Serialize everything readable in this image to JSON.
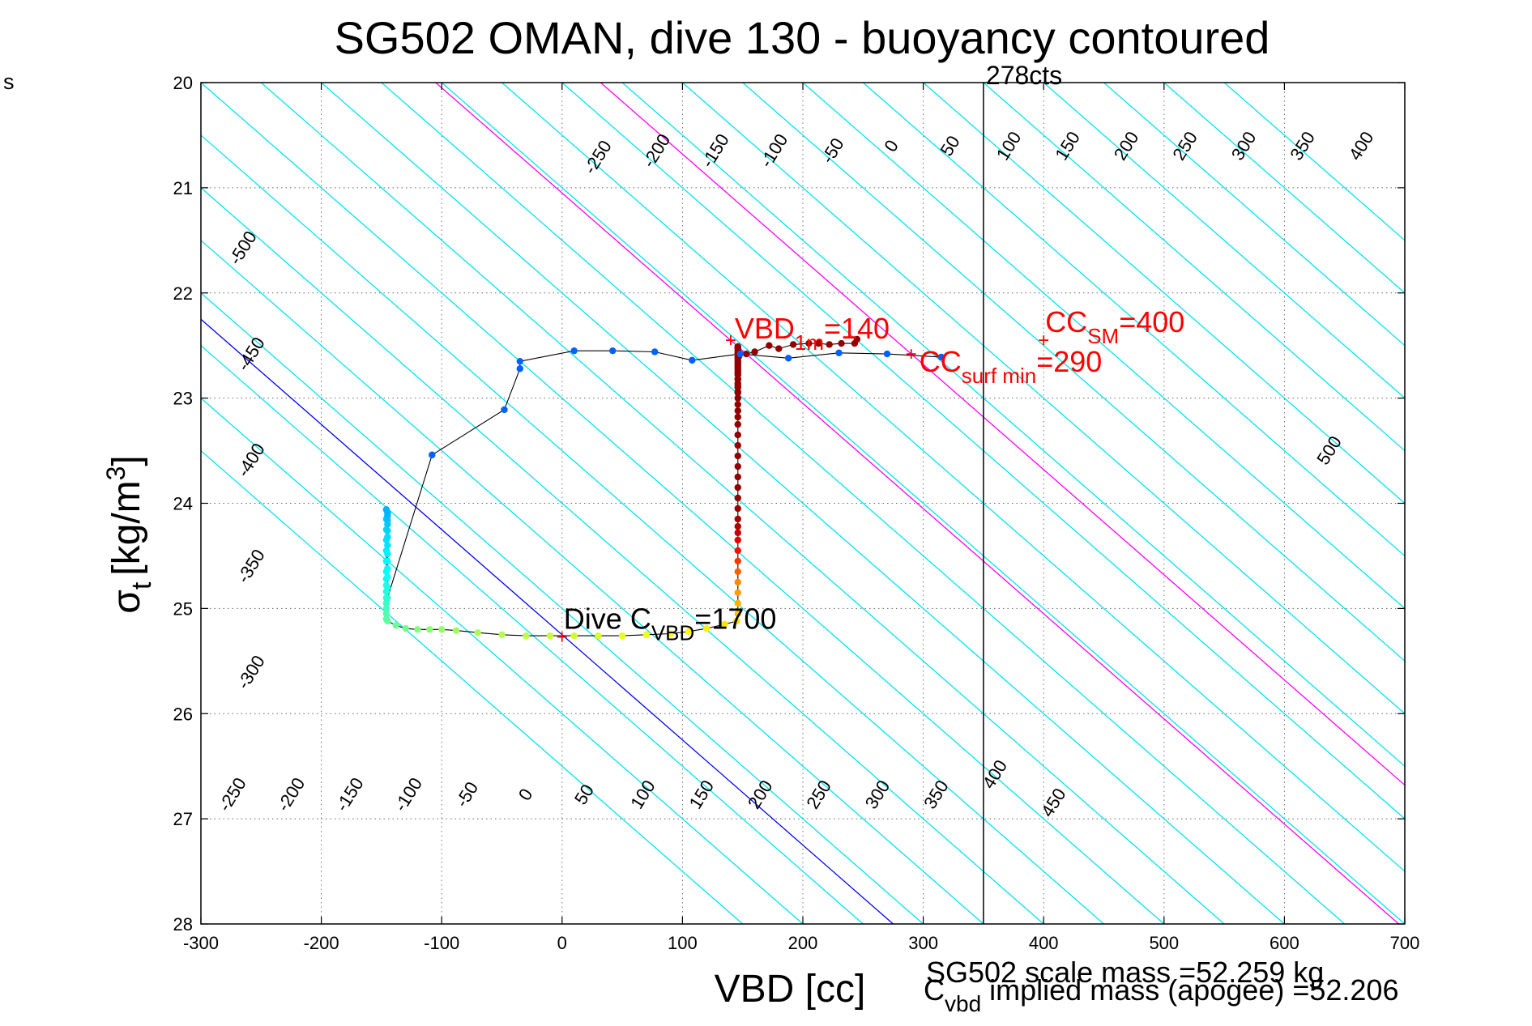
{
  "stray_label": "s",
  "colors": {
    "background": "#ffffff",
    "buoyancy_contour": "#00e5ee",
    "zero_contour": "#0000ff",
    "cc_contour": "#ff00ff",
    "annotation_red": "#ff0000",
    "vertical_line": "#000000",
    "track_line": "#000000"
  },
  "chart_data": {
    "type": "scatter",
    "title": "SG502 OMAN, dive 130 - buoyancy contoured",
    "xlabel": "VBD [cc]",
    "ylabel_main": "σ",
    "ylabel_sub": "t",
    "ylabel_unit": "[kg/m",
    "ylabel_sup": "3",
    "ylabel_close": "]",
    "xlim": [
      -300,
      700
    ],
    "ylim": [
      28,
      20
    ],
    "y_reversed": true,
    "grid": true,
    "xticks": [
      "-300",
      "-200",
      "-100",
      "0",
      "100",
      "200",
      "300",
      "400",
      "500",
      "600",
      "700"
    ],
    "yticks": [
      "20",
      "21",
      "22",
      "23",
      "24",
      "25",
      "26",
      "27",
      "28"
    ],
    "contour_spacing_vbd": 50,
    "contour_slope_vbd_per_sigma": 100,
    "contour_line_range": [
      -650,
      550
    ],
    "contour_labels_top": [
      "-250",
      "-200",
      "-150",
      "-100",
      "-50",
      "0",
      "50",
      "100",
      "150",
      "200",
      "250",
      "300",
      "350",
      "400"
    ],
    "contour_labels_bottom": [
      "-250",
      "-200",
      "-150",
      "-100",
      "-50",
      "0",
      "50",
      "100",
      "150",
      "200",
      "250",
      "300",
      "350",
      "400",
      "450"
    ],
    "contour_labels_left": [
      "-500",
      "-450",
      "-400",
      "-350",
      "-300"
    ],
    "contour_labels_right": [
      "500"
    ],
    "zero_contour_value": 0,
    "highlight_contours": [
      140,
      290
    ],
    "vertical_line": {
      "x": 350,
      "label": "278cts"
    },
    "annotations": [
      {
        "name": "vbd-1m",
        "main": "VBD",
        "sub": "1m",
        "value": "=140",
        "x": 140,
        "y": 22.45
      },
      {
        "name": "cc-surf-min",
        "main": "CC",
        "sub": "surf min",
        "value": "=290",
        "x": 290,
        "y": 22.58
      },
      {
        "name": "cc-sm",
        "main": "CC",
        "sub": "SM",
        "value": "=400",
        "x": 400,
        "y": 22.45
      },
      {
        "name": "dive-cvbd",
        "main": "Dive C",
        "sub": "VBD",
        "value": "=1700",
        "x": 0,
        "y": 25.27
      }
    ],
    "footer_scale_mass": "SG502 scale mass =52.259 kg",
    "footer_implied_main": "C",
    "footer_implied_sub": "vbd",
    "footer_implied_rest": " implied mass (apogee) =52.206",
    "series": [
      {
        "part": "climb",
        "x": [
          -146,
          -146,
          -146,
          -146,
          -146,
          -146,
          -146,
          -146,
          -146,
          -146,
          -146,
          -146,
          -146,
          -146,
          -146,
          -145,
          -138,
          -130,
          -120,
          -110,
          -100,
          -88,
          -70,
          -50,
          -30,
          -10,
          10,
          30,
          50,
          70,
          90,
          105,
          120,
          135,
          145,
          146,
          146,
          146,
          146,
          146,
          146,
          146,
          146,
          146,
          146,
          146,
          146,
          146,
          146,
          146,
          146,
          146,
          146,
          146,
          146,
          146,
          146,
          146,
          146,
          146,
          146,
          146,
          146,
          146,
          146,
          146,
          146,
          146,
          146,
          146,
          146,
          146,
          146,
          146,
          146,
          146,
          146,
          146,
          146,
          146,
          146,
          146,
          147,
          153,
          160,
          172,
          180,
          192,
          205,
          213,
          222,
          232,
          243,
          245
        ],
        "y": [
          24.06,
          24.15,
          24.25,
          24.35,
          24.45,
          24.55,
          24.65,
          24.72,
          24.78,
          24.84,
          24.9,
          24.95,
          25.0,
          25.05,
          25.1,
          25.12,
          25.16,
          25.19,
          25.2,
          25.2,
          25.2,
          25.21,
          25.23,
          25.25,
          25.26,
          25.26,
          25.26,
          25.26,
          25.26,
          25.25,
          25.24,
          25.22,
          25.19,
          25.15,
          25.12,
          25.05,
          24.95,
          24.85,
          24.75,
          24.65,
          24.55,
          24.45,
          24.35,
          24.28,
          24.22,
          24.15,
          24.05,
          23.95,
          23.85,
          23.75,
          23.65,
          23.55,
          23.45,
          23.35,
          23.25,
          23.18,
          23.12,
          23.06,
          23.0,
          22.94,
          22.88,
          22.82,
          22.76,
          22.72,
          22.68,
          22.64,
          22.61,
          22.58,
          22.55,
          22.53,
          22.52,
          22.51,
          22.57,
          22.62,
          22.66,
          22.7,
          22.74,
          22.78,
          22.82,
          22.86,
          22.9,
          22.95,
          22.6,
          22.58,
          22.56,
          22.5,
          22.53,
          22.49,
          22.48,
          22.48,
          22.49,
          22.48,
          22.48,
          22.44
        ],
        "values": [
          0.32,
          0.33,
          0.34,
          0.35,
          0.36,
          0.37,
          0.38,
          0.39,
          0.4,
          0.41,
          0.42,
          0.43,
          0.44,
          0.45,
          0.46,
          0.47,
          0.48,
          0.49,
          0.5,
          0.51,
          0.52,
          0.53,
          0.54,
          0.55,
          0.56,
          0.57,
          0.58,
          0.59,
          0.6,
          0.61,
          0.62,
          0.63,
          0.64,
          0.65,
          0.66,
          0.68,
          0.7,
          0.72,
          0.74,
          0.78,
          0.82,
          0.86,
          0.9,
          0.93,
          0.95,
          0.96,
          0.97,
          0.98,
          0.98,
          0.98,
          0.98,
          0.98,
          0.98,
          0.98,
          0.98,
          0.98,
          0.98,
          0.98,
          0.98,
          0.98,
          0.98,
          0.98,
          0.98,
          0.98,
          0.98,
          0.98,
          0.98,
          0.98,
          0.98,
          0.98,
          0.98,
          0.98,
          0.98,
          0.98,
          0.98,
          0.98,
          0.98,
          0.98,
          0.98,
          0.98,
          0.98,
          0.98,
          0.98,
          0.98,
          0.98,
          0.98,
          0.98,
          0.98,
          0.98,
          0.98,
          0.98,
          0.98,
          0.98,
          0.98
        ]
      },
      {
        "part": "dive",
        "x": [
          -146,
          -145,
          -145,
          -145,
          -145,
          -145,
          -145,
          -145,
          -145,
          -145,
          -145,
          -145,
          -145,
          -145,
          -108,
          -48,
          -35,
          -35,
          10,
          42,
          77,
          108,
          148,
          188,
          230,
          270,
          315
        ],
        "y": [
          24.06,
          24.09,
          24.12,
          24.16,
          24.2,
          24.26,
          24.32,
          24.4,
          24.48,
          24.55,
          24.62,
          24.7,
          24.8,
          24.9,
          23.54,
          23.11,
          22.72,
          22.65,
          22.55,
          22.55,
          22.56,
          22.64,
          22.58,
          22.62,
          22.57,
          22.58,
          22.61
        ],
        "values": [
          0.3,
          0.3,
          0.3,
          0.31,
          0.32,
          0.33,
          0.34,
          0.35,
          0.36,
          0.37,
          0.38,
          0.39,
          0.4,
          0.42,
          0.22,
          0.22,
          0.22,
          0.22,
          0.22,
          0.22,
          0.22,
          0.22,
          0.22,
          0.22,
          0.22,
          0.22,
          0.22
        ]
      }
    ]
  }
}
